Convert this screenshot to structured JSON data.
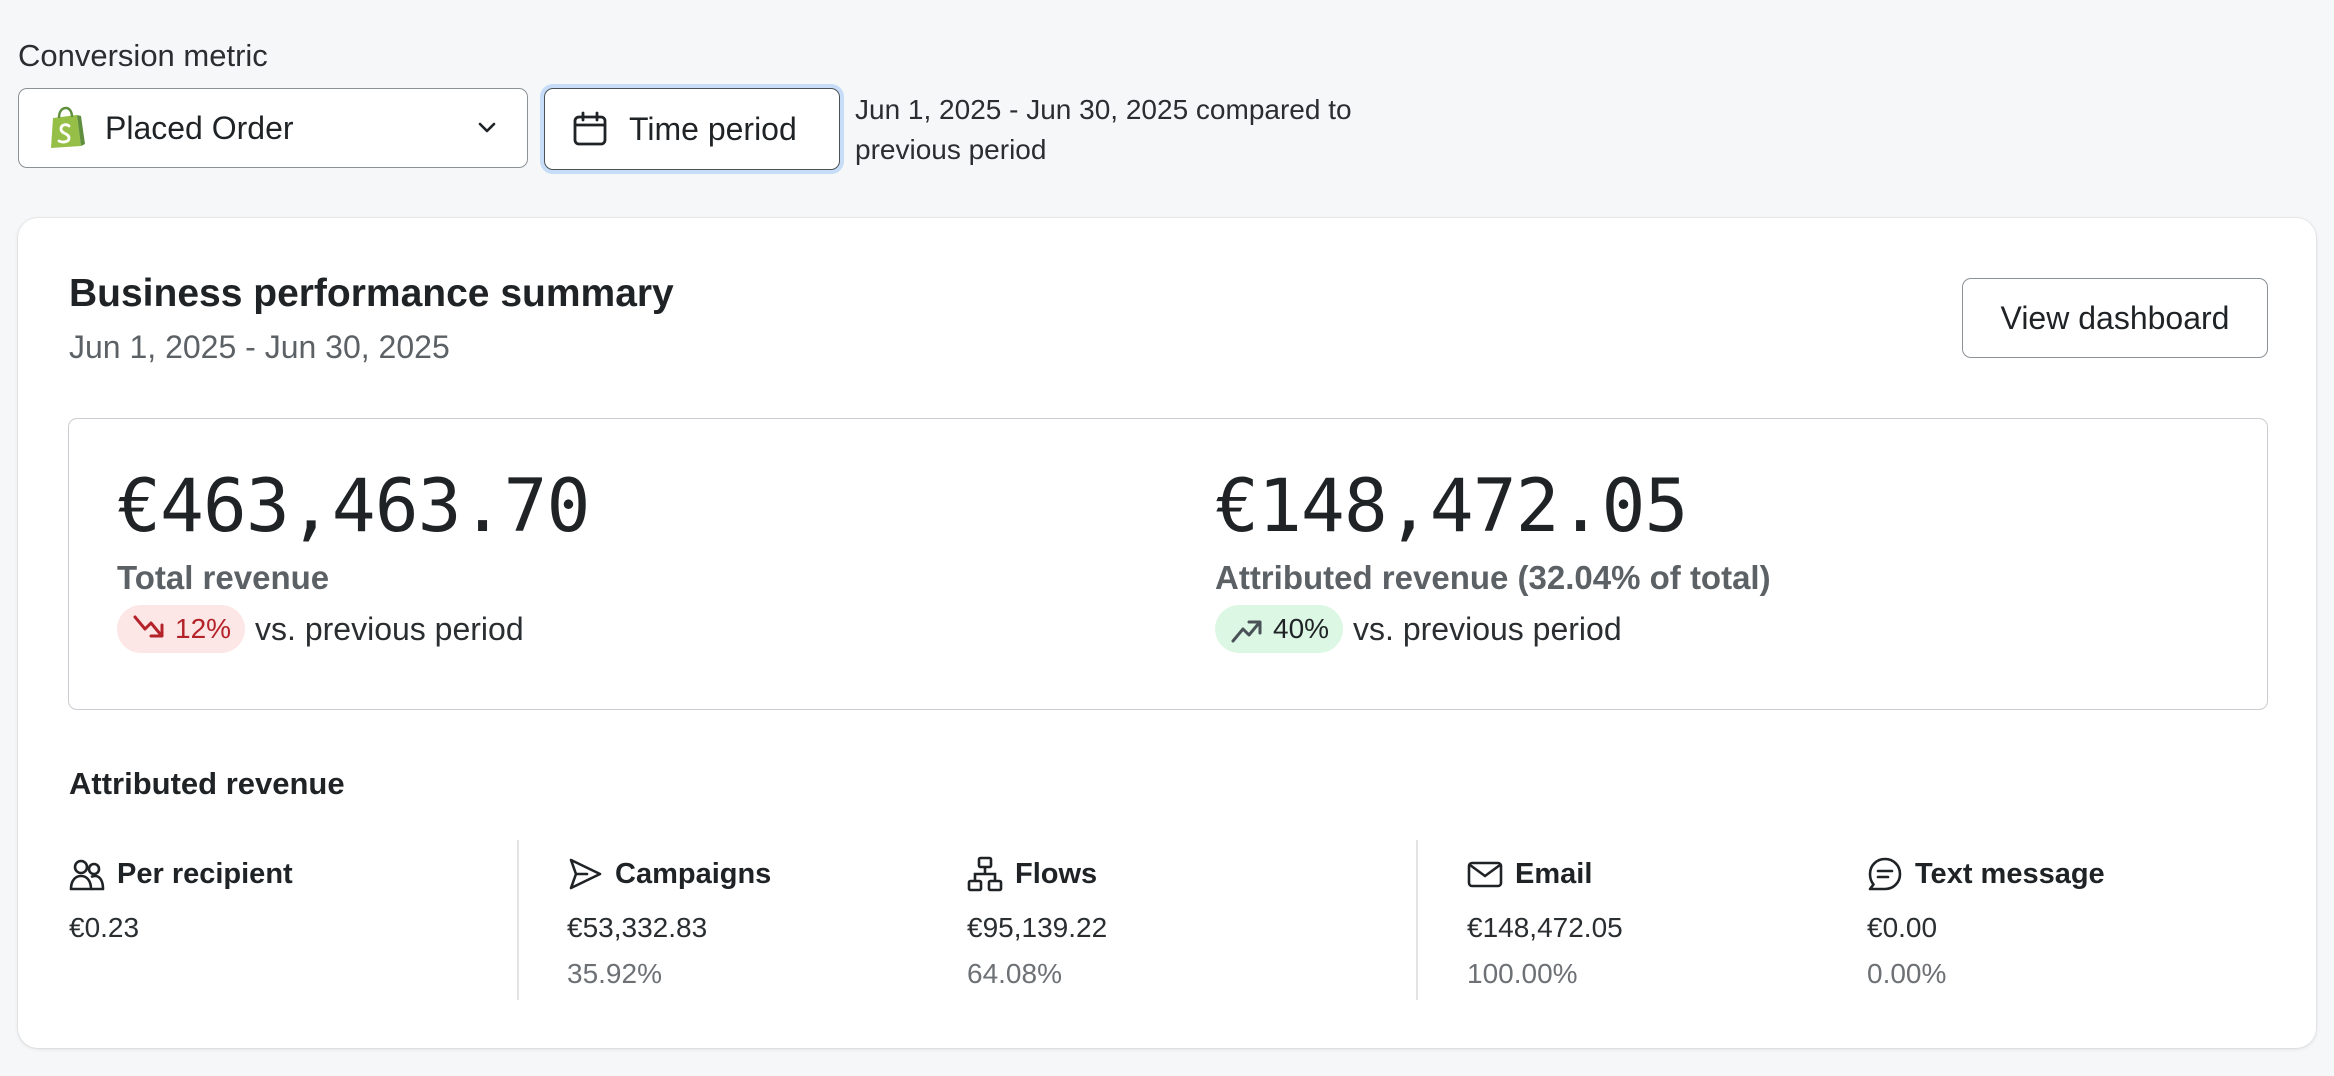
{
  "controls": {
    "metric_label": "Conversion metric",
    "metric_value": "Placed Order",
    "time_period_label": "Time period",
    "compare_text": "Jun 1, 2025 - Jun 30, 2025 compared to previous period"
  },
  "summary": {
    "title": "Business performance summary",
    "date_range": "Jun 1, 2025 - Jun 30, 2025",
    "view_dashboard_label": "View dashboard",
    "total_revenue": {
      "amount": "€463,463.70",
      "label": "Total revenue",
      "change": "12%",
      "direction": "down",
      "comparison": "vs. previous period"
    },
    "attributed_revenue": {
      "amount": "€148,472.05",
      "label": "Attributed revenue (32.04% of total)",
      "change": "40%",
      "direction": "up",
      "comparison": "vs. previous period"
    }
  },
  "attributed": {
    "title": "Attributed revenue",
    "per_recipient": {
      "label": "Per recipient",
      "value": "€0.23"
    },
    "campaigns": {
      "label": "Campaigns",
      "value": "€53,332.83",
      "pct": "35.92%"
    },
    "flows": {
      "label": "Flows",
      "value": "€95,139.22",
      "pct": "64.08%"
    },
    "email": {
      "label": "Email",
      "value": "€148,472.05",
      "pct": "100.00%"
    },
    "text_message": {
      "label": "Text message",
      "value": "€0.00",
      "pct": "0.00%"
    }
  },
  "colors": {
    "negative": "#b4232a",
    "negative_bg": "#fde6e6",
    "positive_bg": "#dcf7e3",
    "focus_ring": "#c7dcf6",
    "shopify_green": "#95bf47"
  }
}
